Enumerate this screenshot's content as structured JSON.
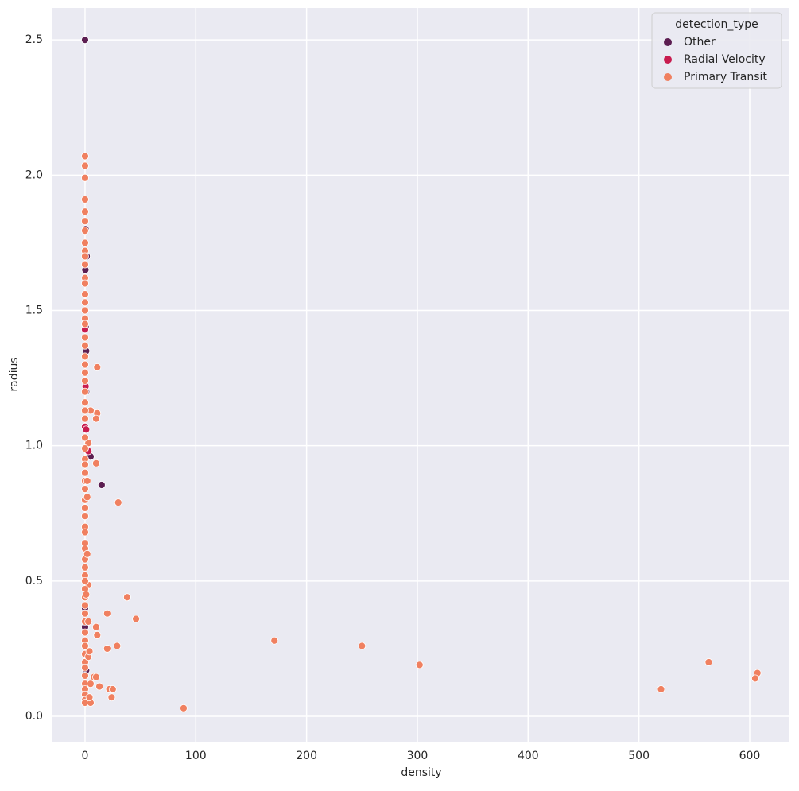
{
  "chart_data": {
    "type": "scatter",
    "xlabel": "density",
    "ylabel": "radius",
    "legend_title": "detection_type",
    "legend": "upper right",
    "grid": true,
    "xlim": [
      -29.4,
      635.9
    ],
    "ylim": [
      -0.094,
      2.618
    ],
    "xticks": [
      0,
      100,
      200,
      300,
      400,
      500,
      600
    ],
    "yticks": [
      {
        "value": 0,
        "label": "0.0"
      },
      0.5,
      {
        "value": 1,
        "label": "1.0"
      },
      1.5,
      {
        "value": 2,
        "label": "2.0"
      },
      2.5
    ],
    "series": [
      {
        "name": "Other",
        "color": "#5c1e51",
        "x": [
          0,
          0.5,
          0.3,
          1.5,
          1,
          2.5,
          5,
          15,
          0,
          0,
          1,
          1,
          0.5
        ],
        "values": [
          2.5,
          1.8,
          1.65,
          1.7,
          1.2,
          1.01,
          0.96,
          0.855,
          0.4,
          0.33,
          0.17,
          1.35,
          1.44
        ]
      },
      {
        "name": "Radial Velocity",
        "color": "#c81c4f",
        "x": [
          0,
          0,
          1,
          3,
          0.5
        ],
        "values": [
          1.43,
          1.07,
          1.06,
          0.98,
          1.22
        ]
      },
      {
        "name": "Primary Transit",
        "color": "#f08060",
        "x": [
          11,
          5,
          11,
          10,
          3,
          10,
          30,
          38,
          46,
          20,
          10,
          11,
          29,
          20,
          171,
          250,
          302,
          563,
          607,
          605,
          520,
          89,
          22,
          25,
          13,
          24,
          8,
          10,
          3,
          0,
          0,
          0,
          0,
          0,
          0,
          0,
          0,
          0,
          0,
          0,
          0,
          0,
          0,
          0,
          0,
          0,
          0,
          0,
          0,
          0,
          0,
          0,
          0,
          0,
          0,
          0,
          0,
          0,
          0,
          0,
          0,
          0,
          0,
          0,
          0,
          0,
          0,
          0,
          0,
          0,
          0,
          0,
          0,
          0,
          0,
          0,
          0,
          0,
          0,
          0,
          0,
          0,
          0,
          0,
          0,
          0,
          0,
          0,
          0,
          0,
          0,
          0,
          2,
          2,
          3,
          3,
          4,
          5,
          4,
          5,
          2,
          1
        ],
        "values": [
          1.29,
          1.13,
          1.12,
          1.1,
          1.01,
          0.935,
          0.79,
          0.44,
          0.36,
          0.38,
          0.33,
          0.3,
          0.26,
          0.25,
          0.28,
          0.26,
          0.19,
          0.2,
          0.16,
          0.14,
          0.1,
          0.03,
          0.1,
          0.1,
          0.11,
          0.07,
          0.145,
          0.145,
          0.485,
          2.07,
          2.035,
          1.99,
          1.91,
          1.865,
          1.83,
          1.795,
          1.75,
          1.72,
          1.7,
          1.67,
          1.62,
          1.6,
          1.56,
          1.53,
          1.5,
          1.47,
          1.45,
          1.4,
          1.37,
          1.33,
          1.3,
          1.27,
          1.24,
          1.2,
          1.16,
          1.13,
          1.1,
          1.03,
          0.99,
          0.95,
          0.93,
          0.9,
          0.87,
          0.84,
          0.8,
          0.77,
          0.74,
          0.7,
          0.68,
          0.64,
          0.62,
          0.58,
          0.55,
          0.52,
          0.5,
          0.47,
          0.44,
          0.41,
          0.38,
          0.35,
          0.31,
          0.28,
          0.26,
          0.23,
          0.2,
          0.18,
          0.15,
          0.12,
          0.1,
          0.08,
          0.06,
          0.05,
          0.87,
          0.81,
          0.35,
          0.22,
          0.24,
          0.05,
          0.07,
          0.12,
          0.6,
          0.45
        ]
      }
    ]
  }
}
